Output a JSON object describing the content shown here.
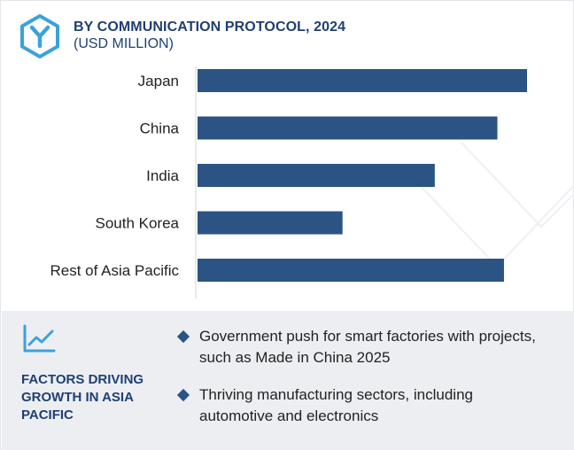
{
  "header": {
    "title": "BY COMMUNICATION PROTOCOL, 2024",
    "subtitle": "(USD MILLION)",
    "logo_icon": "y-hexagon-logo-icon"
  },
  "colors": {
    "bar": "#2b5384",
    "heading": "#1f3f73",
    "logo": "#3aa3d9",
    "footer_bg": "#eceef2"
  },
  "chart_data": {
    "type": "bar",
    "orientation": "horizontal",
    "categories": [
      "Japan",
      "China",
      "India",
      "South Korea",
      "Rest of Asia Pacific"
    ],
    "values": [
      100,
      91,
      72,
      44,
      93
    ],
    "value_scale": "relative (no axis values printed)",
    "xlim": [
      0,
      100
    ],
    "title": "BY COMMUNICATION PROTOCOL, 2024",
    "subtitle": "(USD MILLION)",
    "grid": false,
    "legend": "none"
  },
  "footer": {
    "icon": "trend-line-icon",
    "heading": "FACTORS DRIVING GROWTH IN ASIA PACIFIC",
    "bullet_icon": "diamond-bullet-icon",
    "bullets": [
      "Government push for smart factories with projects, such as Made in China 2025",
      "Thriving manufacturing sectors, including automotive and electronics"
    ]
  }
}
